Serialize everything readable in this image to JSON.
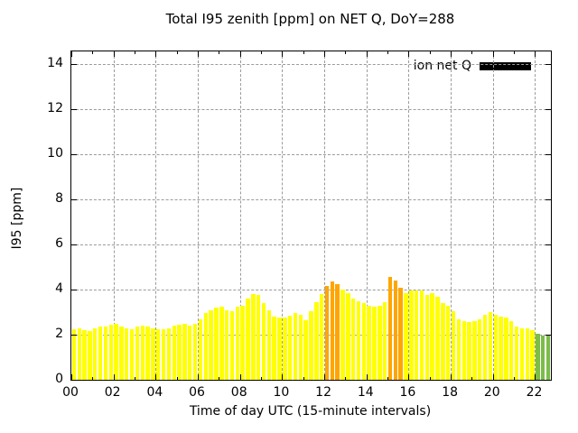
{
  "title": "Total I95 zenith [ppm] on NET Q, DoY=288",
  "legend": {
    "label": "ion net Q",
    "swatch_color": "#000000"
  },
  "axes": {
    "ylabel": "I95 [ppm]",
    "xlabel": "Time of day UTC (15-minute intervals)",
    "y_tick_labels": [
      "0",
      "2",
      "4",
      "6",
      "8",
      "10",
      "12",
      "14"
    ],
    "x_tick_labels": [
      "00",
      "02",
      "04",
      "06",
      "08",
      "10",
      "12",
      "14",
      "16",
      "18",
      "20",
      "22"
    ]
  },
  "colors": {
    "yellow": "#ffff00",
    "orange": "#ffa500",
    "green": "#7cbc49",
    "grid": "#9b9b9b",
    "axis": "#000000",
    "background": "#ffffff"
  },
  "chart_data": {
    "type": "bar",
    "title": "Total I95 zenith [ppm] on NET Q, DoY=288",
    "xlabel": "Time of day UTC (15-minute intervals)",
    "ylabel": "I95 [ppm]",
    "series_name": "ion net Q",
    "interval_minutes": 15,
    "start_time": "00:00",
    "end_time": "22:45",
    "ylim": [
      0,
      14.56
    ],
    "xlim_hours": [
      0,
      22.75
    ],
    "y_ticks": [
      0,
      2,
      4,
      6,
      8,
      10,
      12,
      14
    ],
    "x_ticks_hours": [
      0,
      2,
      4,
      6,
      8,
      10,
      12,
      14,
      16,
      18,
      20,
      22
    ],
    "grid": true,
    "legend_position": "top-right-inside",
    "values": [
      2.25,
      2.3,
      2.2,
      2.15,
      2.3,
      2.35,
      2.35,
      2.45,
      2.5,
      2.35,
      2.3,
      2.25,
      2.35,
      2.4,
      2.35,
      2.3,
      2.25,
      2.25,
      2.3,
      2.4,
      2.45,
      2.5,
      2.4,
      2.5,
      2.7,
      2.95,
      3.1,
      3.2,
      3.25,
      3.1,
      3.05,
      3.25,
      3.3,
      3.6,
      3.8,
      3.75,
      3.4,
      3.1,
      2.8,
      2.75,
      2.75,
      2.85,
      2.95,
      2.9,
      2.65,
      3.05,
      3.45,
      3.8,
      4.15,
      4.35,
      4.25,
      4.0,
      3.85,
      3.6,
      3.5,
      3.4,
      3.3,
      3.25,
      3.3,
      3.45,
      4.55,
      4.4,
      4.1,
      3.85,
      3.95,
      3.95,
      3.95,
      3.75,
      3.85,
      3.7,
      3.4,
      3.3,
      3.05,
      2.7,
      2.6,
      2.55,
      2.6,
      2.7,
      2.9,
      3.0,
      2.9,
      2.8,
      2.75,
      2.6,
      2.35,
      2.3,
      2.3,
      2.2,
      2.05,
      1.95,
      1.95
    ],
    "bar_colors": [
      "y",
      "y",
      "y",
      "y",
      "y",
      "y",
      "y",
      "y",
      "y",
      "y",
      "y",
      "y",
      "y",
      "y",
      "y",
      "y",
      "y",
      "y",
      "y",
      "y",
      "y",
      "y",
      "y",
      "y",
      "y",
      "y",
      "y",
      "y",
      "y",
      "y",
      "y",
      "y",
      "y",
      "y",
      "y",
      "y",
      "y",
      "y",
      "y",
      "y",
      "y",
      "y",
      "y",
      "y",
      "y",
      "y",
      "y",
      "y",
      "o",
      "o",
      "o",
      "y",
      "y",
      "y",
      "y",
      "y",
      "y",
      "y",
      "y",
      "y",
      "o",
      "o",
      "o",
      "y",
      "y",
      "y",
      "y",
      "y",
      "y",
      "y",
      "y",
      "y",
      "y",
      "y",
      "y",
      "y",
      "y",
      "y",
      "y",
      "y",
      "y",
      "y",
      "y",
      "y",
      "y",
      "y",
      "y",
      "y",
      "g",
      "g",
      "g"
    ]
  }
}
